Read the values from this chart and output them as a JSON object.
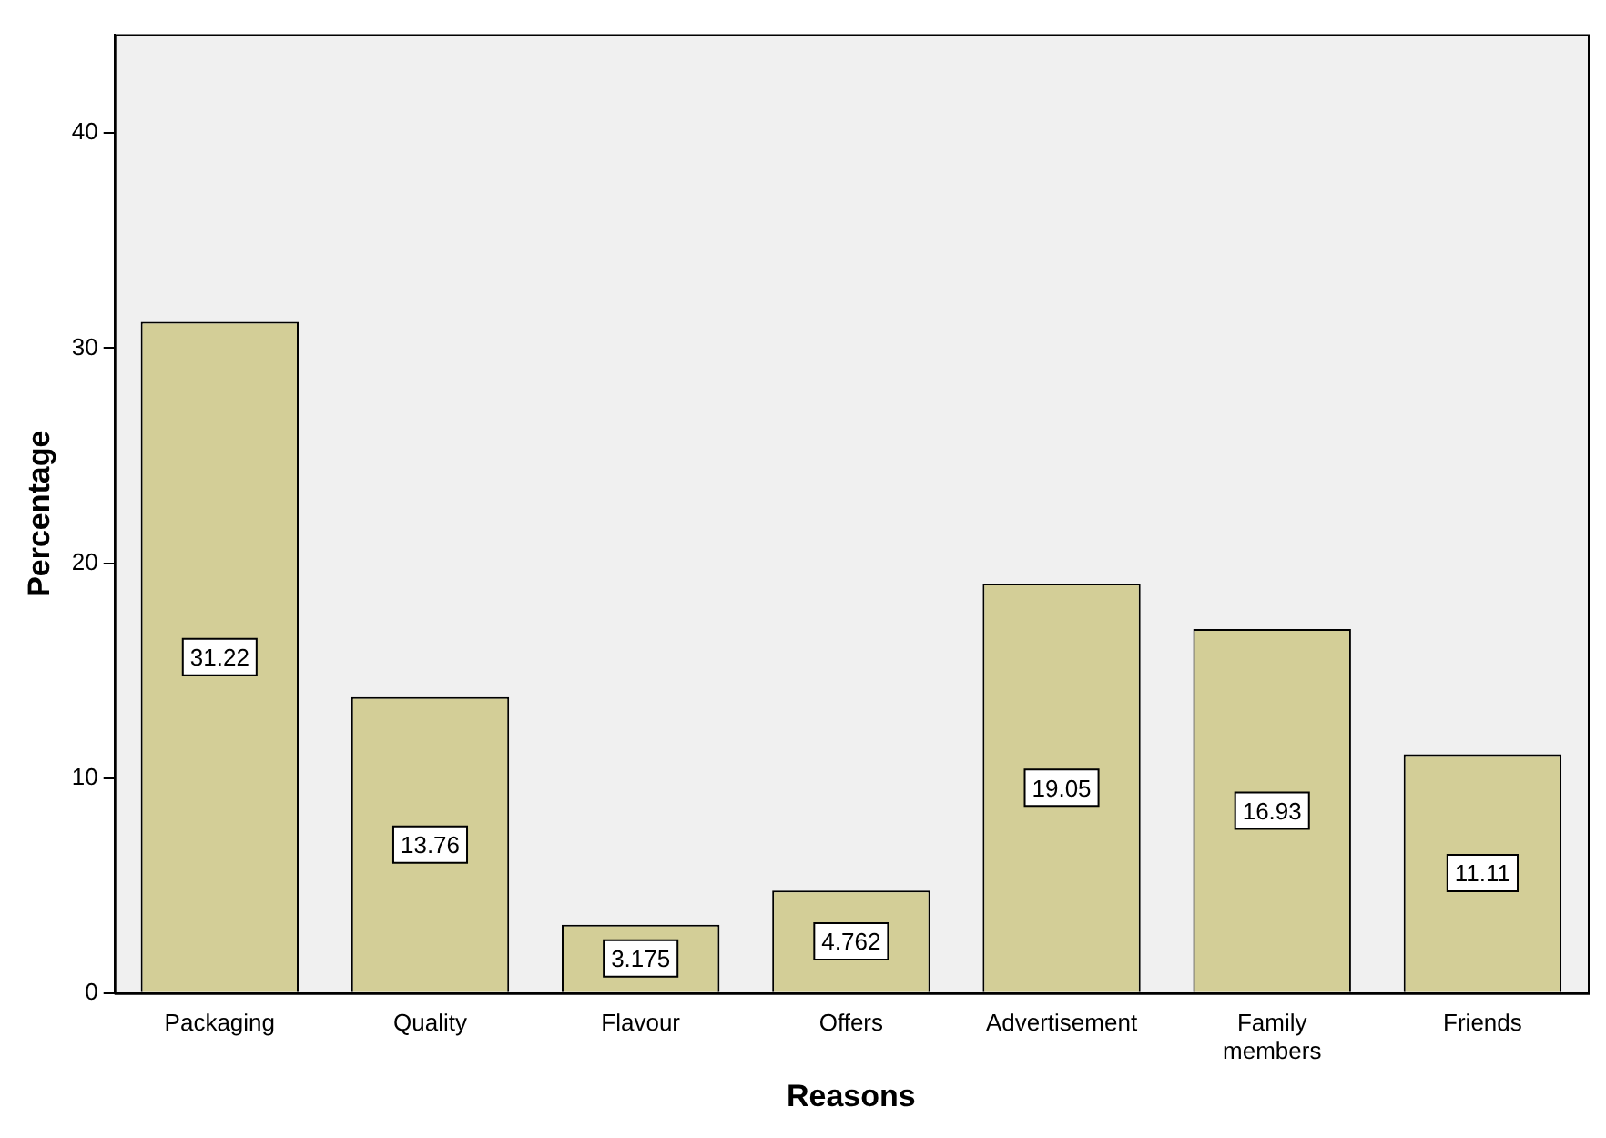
{
  "chart_data": {
    "type": "bar",
    "xlabel": "Reasons",
    "ylabel": "Percentage",
    "categories": [
      "Packaging",
      "Quality",
      "Flavour",
      "Offers",
      "Advertisement",
      "Family members",
      "Friends"
    ],
    "values": [
      31.22,
      13.76,
      3.175,
      4.762,
      19.05,
      16.93,
      11.11
    ],
    "color": "#d3ce97",
    "ylim": [
      0,
      44.6
    ],
    "yticks": [
      0,
      10,
      20,
      30,
      40
    ],
    "grid": false,
    "legend": false,
    "data_labels": true
  }
}
